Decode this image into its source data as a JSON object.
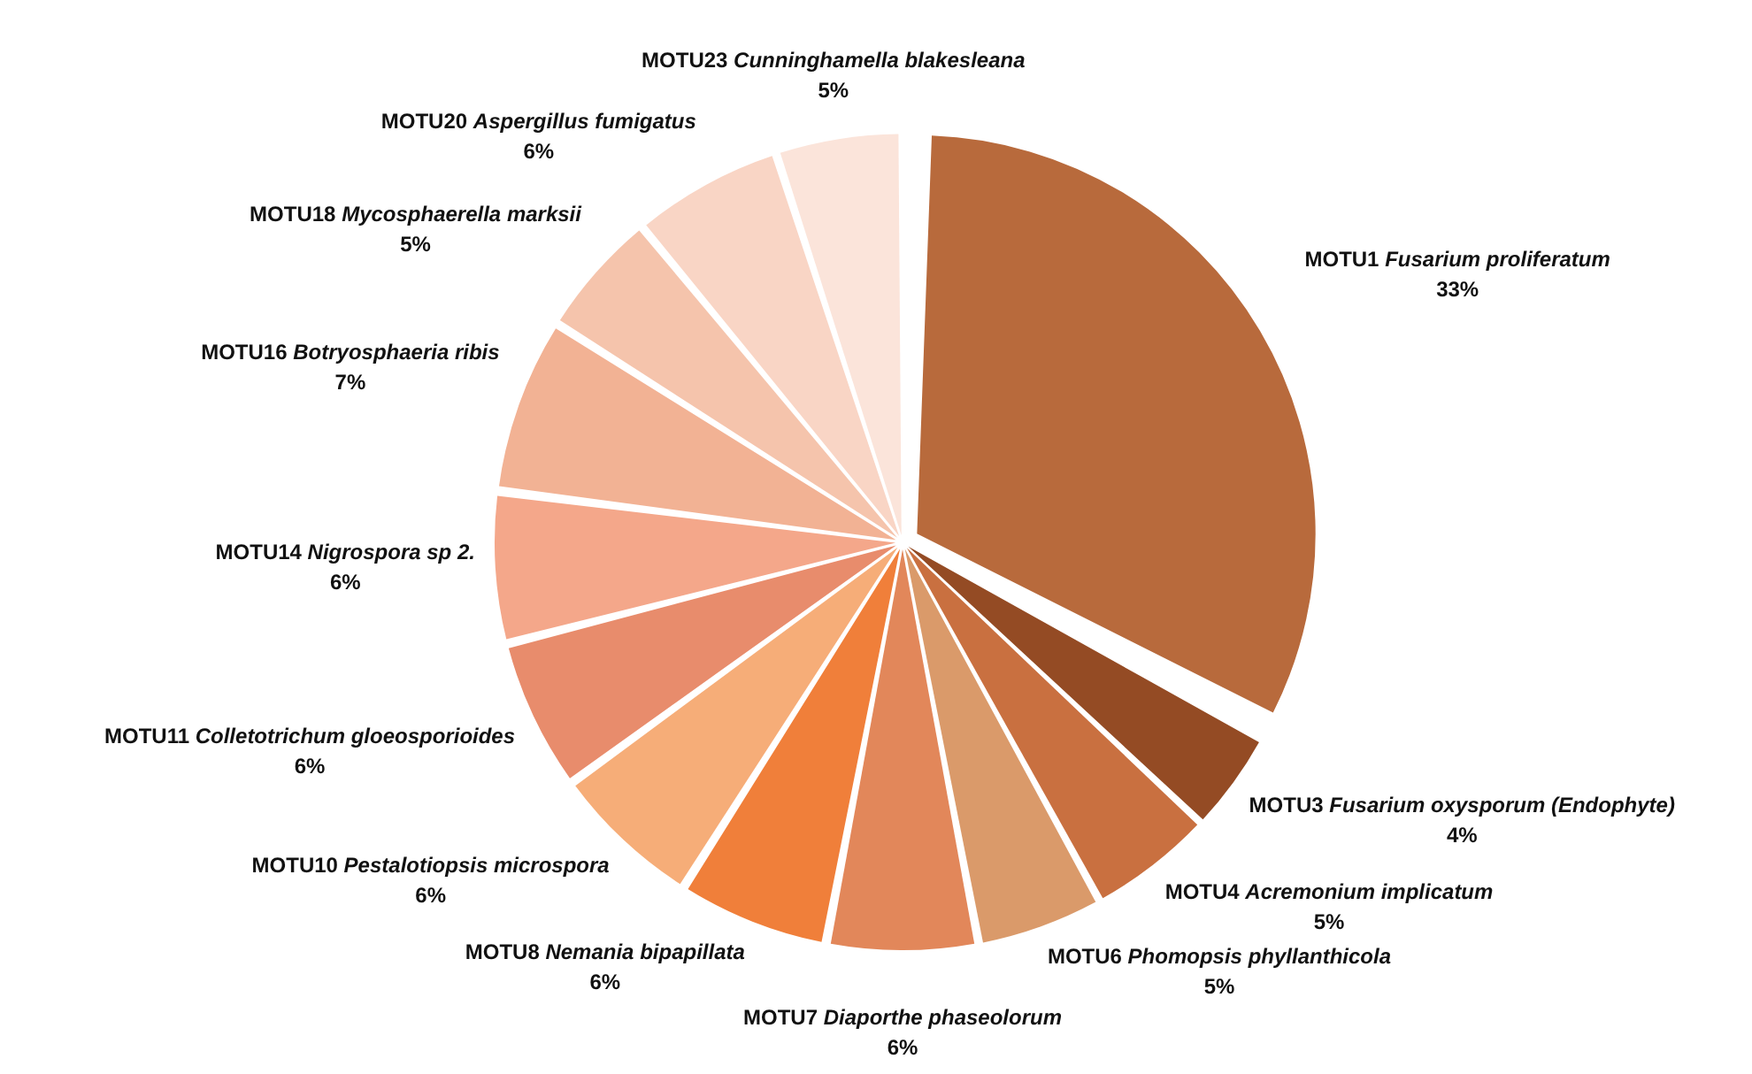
{
  "chart_data": {
    "type": "pie",
    "legend": false,
    "categories": [
      "MOTU1 Fusarium proliferatum",
      "MOTU3 Fusarium oxysporum (Endophyte)",
      "MOTU4 Acremonium implicatum",
      "MOTU6 Phomopsis phyllanthicola",
      "MOTU7 Diaporthe phaseolorum",
      "MOTU8 Nemania bipapillata",
      "MOTU10 Pestalotiopsis microspora",
      "MOTU11 Colletotrichum gloeosporioides",
      "MOTU14 Nigrospora sp 2.",
      "MOTU16 Botryosphaeria ribis",
      "MOTU18 Mycosphaerella marksii",
      "MOTU20 Aspergillus fumigatus",
      "MOTU23 Cunninghamella blakesleana"
    ],
    "values": [
      33,
      4,
      5,
      5,
      6,
      6,
      6,
      6,
      6,
      7,
      5,
      6,
      5
    ],
    "value_labels": [
      "33%",
      "4%",
      "5%",
      "5%",
      "6%",
      "6%",
      "6%",
      "6%",
      "6%",
      "7%",
      "5%",
      "6%",
      "5%"
    ],
    "colors": [
      "#b86a3c",
      "#944b24",
      "#c97040",
      "#da9a6a",
      "#e2875a",
      "#f07f3a",
      "#f6ad78",
      "#e88c6c",
      "#f4a78a",
      "#f2b294",
      "#f5c4ac",
      "#f9d5c5",
      "#fbe4da"
    ]
  }
}
